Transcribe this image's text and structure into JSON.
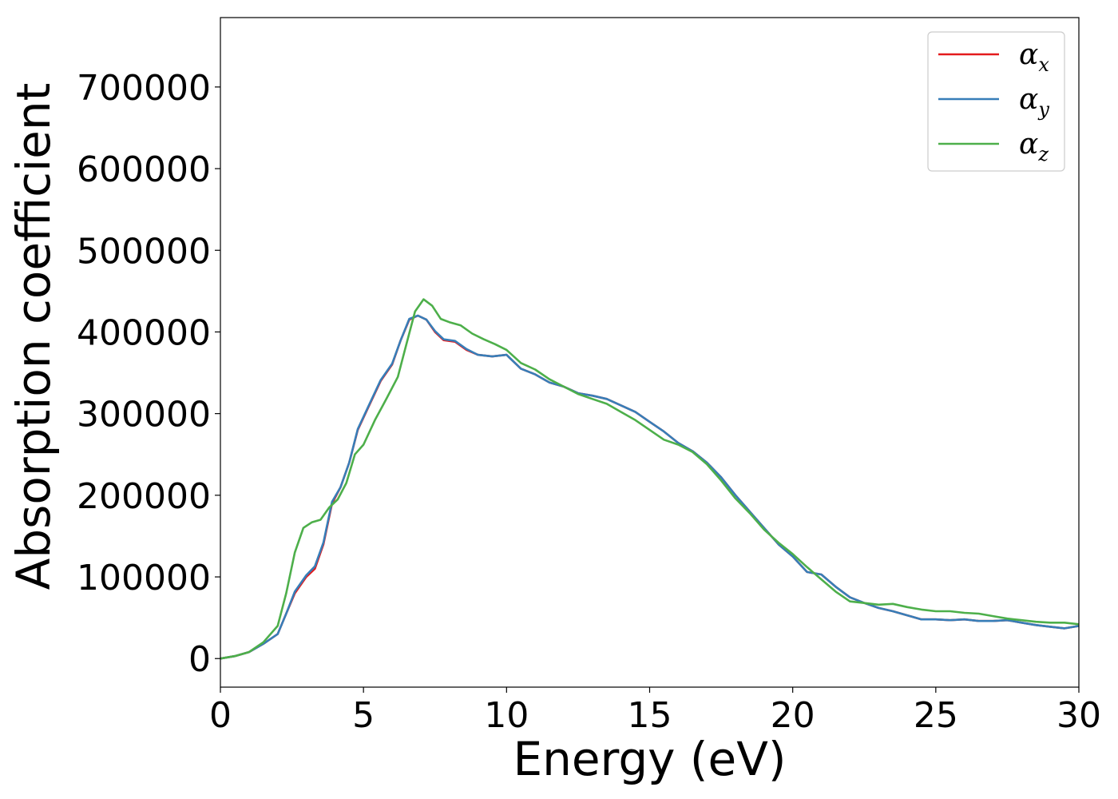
{
  "chart_data": {
    "type": "line",
    "xlabel": "Energy (eV)",
    "ylabel": "Absorption coefficient",
    "xlim": [
      0,
      30
    ],
    "ylim": [
      -35000,
      785000
    ],
    "xticks": [
      0,
      5,
      10,
      15,
      20,
      25,
      30
    ],
    "xtick_labels": [
      "0",
      "5",
      "10",
      "15",
      "20",
      "25",
      "30"
    ],
    "yticks": [
      0,
      100000,
      200000,
      300000,
      400000,
      500000,
      600000,
      700000
    ],
    "ytick_labels": [
      "0",
      "100000",
      "200000",
      "300000",
      "400000",
      "500000",
      "600000",
      "700000"
    ],
    "grid": false,
    "legend_position": "top-right",
    "series": [
      {
        "name": "α",
        "subscript": "x",
        "color": "#e41a1c",
        "points": [
          [
            0,
            0
          ],
          [
            0.5,
            3000
          ],
          [
            1,
            8000
          ],
          [
            1.5,
            18000
          ],
          [
            2,
            30000
          ],
          [
            2.3,
            55000
          ],
          [
            2.6,
            80000
          ],
          [
            3,
            100000
          ],
          [
            3.3,
            110000
          ],
          [
            3.6,
            140000
          ],
          [
            3.9,
            190000
          ],
          [
            4.2,
            210000
          ],
          [
            4.5,
            240000
          ],
          [
            4.8,
            280000
          ],
          [
            5.2,
            310000
          ],
          [
            5.6,
            340000
          ],
          [
            6,
            360000
          ],
          [
            6.3,
            390000
          ],
          [
            6.6,
            415000
          ],
          [
            6.9,
            420000
          ],
          [
            7.2,
            415000
          ],
          [
            7.5,
            400000
          ],
          [
            7.8,
            390000
          ],
          [
            8.2,
            388000
          ],
          [
            8.6,
            378000
          ],
          [
            9,
            372000
          ],
          [
            9.5,
            370000
          ],
          [
            10,
            372000
          ],
          [
            10.5,
            355000
          ],
          [
            11,
            348000
          ],
          [
            11.5,
            338000
          ],
          [
            12,
            333000
          ],
          [
            12.5,
            325000
          ],
          [
            13,
            322000
          ],
          [
            13.5,
            318000
          ],
          [
            14,
            310000
          ],
          [
            14.5,
            302000
          ],
          [
            15,
            290000
          ],
          [
            15.5,
            278000
          ],
          [
            16,
            264000
          ],
          [
            16.5,
            254000
          ],
          [
            17,
            240000
          ],
          [
            17.5,
            222000
          ],
          [
            18,
            200000
          ],
          [
            18.5,
            180000
          ],
          [
            19,
            160000
          ],
          [
            19.5,
            140000
          ],
          [
            20,
            125000
          ],
          [
            20.5,
            106000
          ],
          [
            21,
            103000
          ],
          [
            21.5,
            88000
          ],
          [
            22,
            75000
          ],
          [
            22.5,
            68000
          ],
          [
            23,
            62000
          ],
          [
            23.5,
            58000
          ],
          [
            24,
            53000
          ],
          [
            24.5,
            48000
          ],
          [
            25,
            48000
          ],
          [
            25.5,
            47000
          ],
          [
            26,
            48000
          ],
          [
            26.5,
            46000
          ],
          [
            27,
            46000
          ],
          [
            27.5,
            47000
          ],
          [
            28,
            44000
          ],
          [
            28.5,
            41000
          ],
          [
            29,
            39000
          ],
          [
            29.5,
            37000
          ],
          [
            30,
            40000
          ]
        ]
      },
      {
        "name": "α",
        "subscript": "y",
        "color": "#377eb8",
        "points": [
          [
            0,
            0
          ],
          [
            0.5,
            3000
          ],
          [
            1,
            8000
          ],
          [
            1.5,
            18000
          ],
          [
            2,
            30000
          ],
          [
            2.3,
            55000
          ],
          [
            2.6,
            82000
          ],
          [
            3,
            102000
          ],
          [
            3.3,
            113000
          ],
          [
            3.6,
            142000
          ],
          [
            3.9,
            192000
          ],
          [
            4.2,
            210000
          ],
          [
            4.5,
            240000
          ],
          [
            4.8,
            281000
          ],
          [
            5.2,
            311000
          ],
          [
            5.6,
            341000
          ],
          [
            6,
            361000
          ],
          [
            6.3,
            390000
          ],
          [
            6.6,
            416000
          ],
          [
            6.9,
            420000
          ],
          [
            7.2,
            415000
          ],
          [
            7.5,
            401000
          ],
          [
            7.8,
            391000
          ],
          [
            8.2,
            389000
          ],
          [
            8.6,
            379000
          ],
          [
            9,
            372000
          ],
          [
            9.5,
            370000
          ],
          [
            10,
            372000
          ],
          [
            10.5,
            355000
          ],
          [
            11,
            348000
          ],
          [
            11.5,
            338000
          ],
          [
            12,
            333000
          ],
          [
            12.5,
            325000
          ],
          [
            13,
            322000
          ],
          [
            13.5,
            318000
          ],
          [
            14,
            310000
          ],
          [
            14.5,
            302000
          ],
          [
            15,
            290000
          ],
          [
            15.5,
            278000
          ],
          [
            16,
            264000
          ],
          [
            16.5,
            254000
          ],
          [
            17,
            240000
          ],
          [
            17.5,
            222000
          ],
          [
            18,
            200000
          ],
          [
            18.5,
            180000
          ],
          [
            19,
            160000
          ],
          [
            19.5,
            140000
          ],
          [
            20,
            125000
          ],
          [
            20.5,
            106000
          ],
          [
            21,
            103000
          ],
          [
            21.5,
            88000
          ],
          [
            22,
            75000
          ],
          [
            22.5,
            68000
          ],
          [
            23,
            62000
          ],
          [
            23.5,
            58000
          ],
          [
            24,
            53000
          ],
          [
            24.5,
            48000
          ],
          [
            25,
            48000
          ],
          [
            25.5,
            47000
          ],
          [
            26,
            48000
          ],
          [
            26.5,
            46000
          ],
          [
            27,
            46000
          ],
          [
            27.5,
            47000
          ],
          [
            28,
            44000
          ],
          [
            28.5,
            41000
          ],
          [
            29,
            39000
          ],
          [
            29.5,
            37000
          ],
          [
            30,
            40000
          ]
        ]
      },
      {
        "name": "α",
        "subscript": "z",
        "color": "#4daf4a",
        "points": [
          [
            0,
            0
          ],
          [
            0.5,
            3000
          ],
          [
            1,
            8000
          ],
          [
            1.5,
            20000
          ],
          [
            2,
            40000
          ],
          [
            2.3,
            80000
          ],
          [
            2.6,
            130000
          ],
          [
            2.9,
            160000
          ],
          [
            3.2,
            167000
          ],
          [
            3.5,
            170000
          ],
          [
            3.8,
            185000
          ],
          [
            4.1,
            195000
          ],
          [
            4.4,
            215000
          ],
          [
            4.7,
            250000
          ],
          [
            5,
            262000
          ],
          [
            5.4,
            292000
          ],
          [
            5.8,
            318000
          ],
          [
            6.2,
            345000
          ],
          [
            6.5,
            385000
          ],
          [
            6.8,
            425000
          ],
          [
            7.1,
            440000
          ],
          [
            7.4,
            432000
          ],
          [
            7.7,
            416000
          ],
          [
            8,
            412000
          ],
          [
            8.4,
            408000
          ],
          [
            8.8,
            398000
          ],
          [
            9.2,
            391000
          ],
          [
            9.6,
            385000
          ],
          [
            10,
            378000
          ],
          [
            10.5,
            362000
          ],
          [
            11,
            354000
          ],
          [
            11.5,
            342000
          ],
          [
            12,
            333000
          ],
          [
            12.5,
            324000
          ],
          [
            13,
            318000
          ],
          [
            13.5,
            312000
          ],
          [
            14,
            302000
          ],
          [
            14.5,
            292000
          ],
          [
            15,
            280000
          ],
          [
            15.5,
            268000
          ],
          [
            16,
            262000
          ],
          [
            16.5,
            253000
          ],
          [
            17,
            238000
          ],
          [
            17.5,
            218000
          ],
          [
            18,
            196000
          ],
          [
            18.5,
            178000
          ],
          [
            19,
            158000
          ],
          [
            19.5,
            142000
          ],
          [
            20,
            128000
          ],
          [
            20.5,
            112000
          ],
          [
            21,
            97000
          ],
          [
            21.5,
            82000
          ],
          [
            22,
            70000
          ],
          [
            22.5,
            68000
          ],
          [
            23,
            66000
          ],
          [
            23.5,
            67000
          ],
          [
            24,
            63000
          ],
          [
            24.5,
            60000
          ],
          [
            25,
            58000
          ],
          [
            25.5,
            58000
          ],
          [
            26,
            56000
          ],
          [
            26.5,
            55000
          ],
          [
            27,
            52000
          ],
          [
            27.5,
            49000
          ],
          [
            28,
            47000
          ],
          [
            28.5,
            45000
          ],
          [
            29,
            44000
          ],
          [
            29.5,
            44000
          ],
          [
            30,
            42000
          ]
        ]
      }
    ]
  }
}
